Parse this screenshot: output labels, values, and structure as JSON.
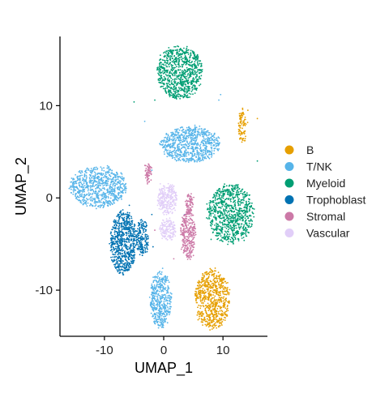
{
  "chart_data": {
    "type": "scatter",
    "title": "",
    "xlabel": "UMAP_1",
    "ylabel": "UMAP_2",
    "xlim": [
      -17.5,
      17.5
    ],
    "ylim": [
      -15,
      17.5
    ],
    "x_ticks": [
      -10,
      0,
      10
    ],
    "y_ticks": [
      -10,
      0,
      10
    ],
    "x_tick_labels": [
      "-10",
      "0",
      "10"
    ],
    "y_tick_labels": [
      "-10",
      "0",
      "10"
    ],
    "grid": false,
    "legend_position": "right",
    "series": [
      {
        "name": "B",
        "color": "#E69F00",
        "clusters": [
          {
            "cx": 8.2,
            "cy": -11.0,
            "rx": 2.9,
            "ry": 3.2,
            "n": 700
          },
          {
            "cx": 13.3,
            "cy": 7.8,
            "rx": 0.7,
            "ry": 1.8,
            "n": 90
          }
        ],
        "outliers": [
          [
            15.8,
            8.6
          ],
          [
            14.2,
            9.5
          ],
          [
            13.6,
            6.2
          ]
        ]
      },
      {
        "name": "T/NK",
        "color": "#56B4E9",
        "clusters": [
          {
            "cx": -11.0,
            "cy": 1.2,
            "rx": 4.8,
            "ry": 2.2,
            "n": 750
          },
          {
            "cx": 4.5,
            "cy": 5.8,
            "rx": 5.0,
            "ry": 1.9,
            "n": 750
          },
          {
            "cx": -0.5,
            "cy": -11.0,
            "rx": 1.7,
            "ry": 3.1,
            "n": 450
          }
        ],
        "outliers": [
          [
            9.3,
            10.6
          ],
          [
            9.6,
            11.2
          ],
          [
            -3.2,
            8.3
          ],
          [
            3.5,
            -1.8
          ],
          [
            -2.0,
            3.0
          ]
        ]
      },
      {
        "name": "Myeloid",
        "color": "#009E73",
        "clusters": [
          {
            "cx": 2.7,
            "cy": 13.6,
            "rx": 3.8,
            "ry": 2.9,
            "n": 850
          },
          {
            "cx": 11.3,
            "cy": -1.7,
            "rx": 3.9,
            "ry": 3.2,
            "n": 850
          }
        ],
        "outliers": [
          [
            -5.0,
            10.4
          ],
          [
            -1.5,
            10.6
          ],
          [
            15.8,
            4.0
          ],
          [
            8.0,
            -4.5
          ]
        ]
      },
      {
        "name": "Trophoblast",
        "color": "#0072B2",
        "clusters": [
          {
            "cx": -6.8,
            "cy": -4.9,
            "rx": 2.2,
            "ry": 3.4,
            "n": 700
          },
          {
            "cx": -3.6,
            "cy": -4.3,
            "rx": 1.0,
            "ry": 2.0,
            "n": 180
          }
        ],
        "outliers": [
          [
            -2.0,
            -1.8
          ],
          [
            -1.8,
            -5.3
          ],
          [
            -5.8,
            -0.8
          ]
        ]
      },
      {
        "name": "Stromal",
        "color": "#CC79A7",
        "clusters": [
          {
            "cx": 4.1,
            "cy": -4.0,
            "rx": 1.2,
            "ry": 2.6,
            "n": 300
          },
          {
            "cx": -2.6,
            "cy": 2.7,
            "rx": 0.5,
            "ry": 1.2,
            "n": 70
          },
          {
            "cx": 4.4,
            "cy": -0.6,
            "rx": 0.6,
            "ry": 1.1,
            "n": 80
          }
        ],
        "outliers": [
          [
            1.7,
            -6.6
          ],
          [
            -1.5,
            -3.5
          ]
        ]
      },
      {
        "name": "Vascular",
        "color": "#E1CEF8",
        "clusters": [
          {
            "cx": 0.6,
            "cy": -0.1,
            "rx": 1.6,
            "ry": 1.7,
            "n": 260
          },
          {
            "cx": 0.7,
            "cy": -3.4,
            "rx": 1.3,
            "ry": 1.2,
            "n": 150
          }
        ],
        "outliers": []
      }
    ]
  }
}
